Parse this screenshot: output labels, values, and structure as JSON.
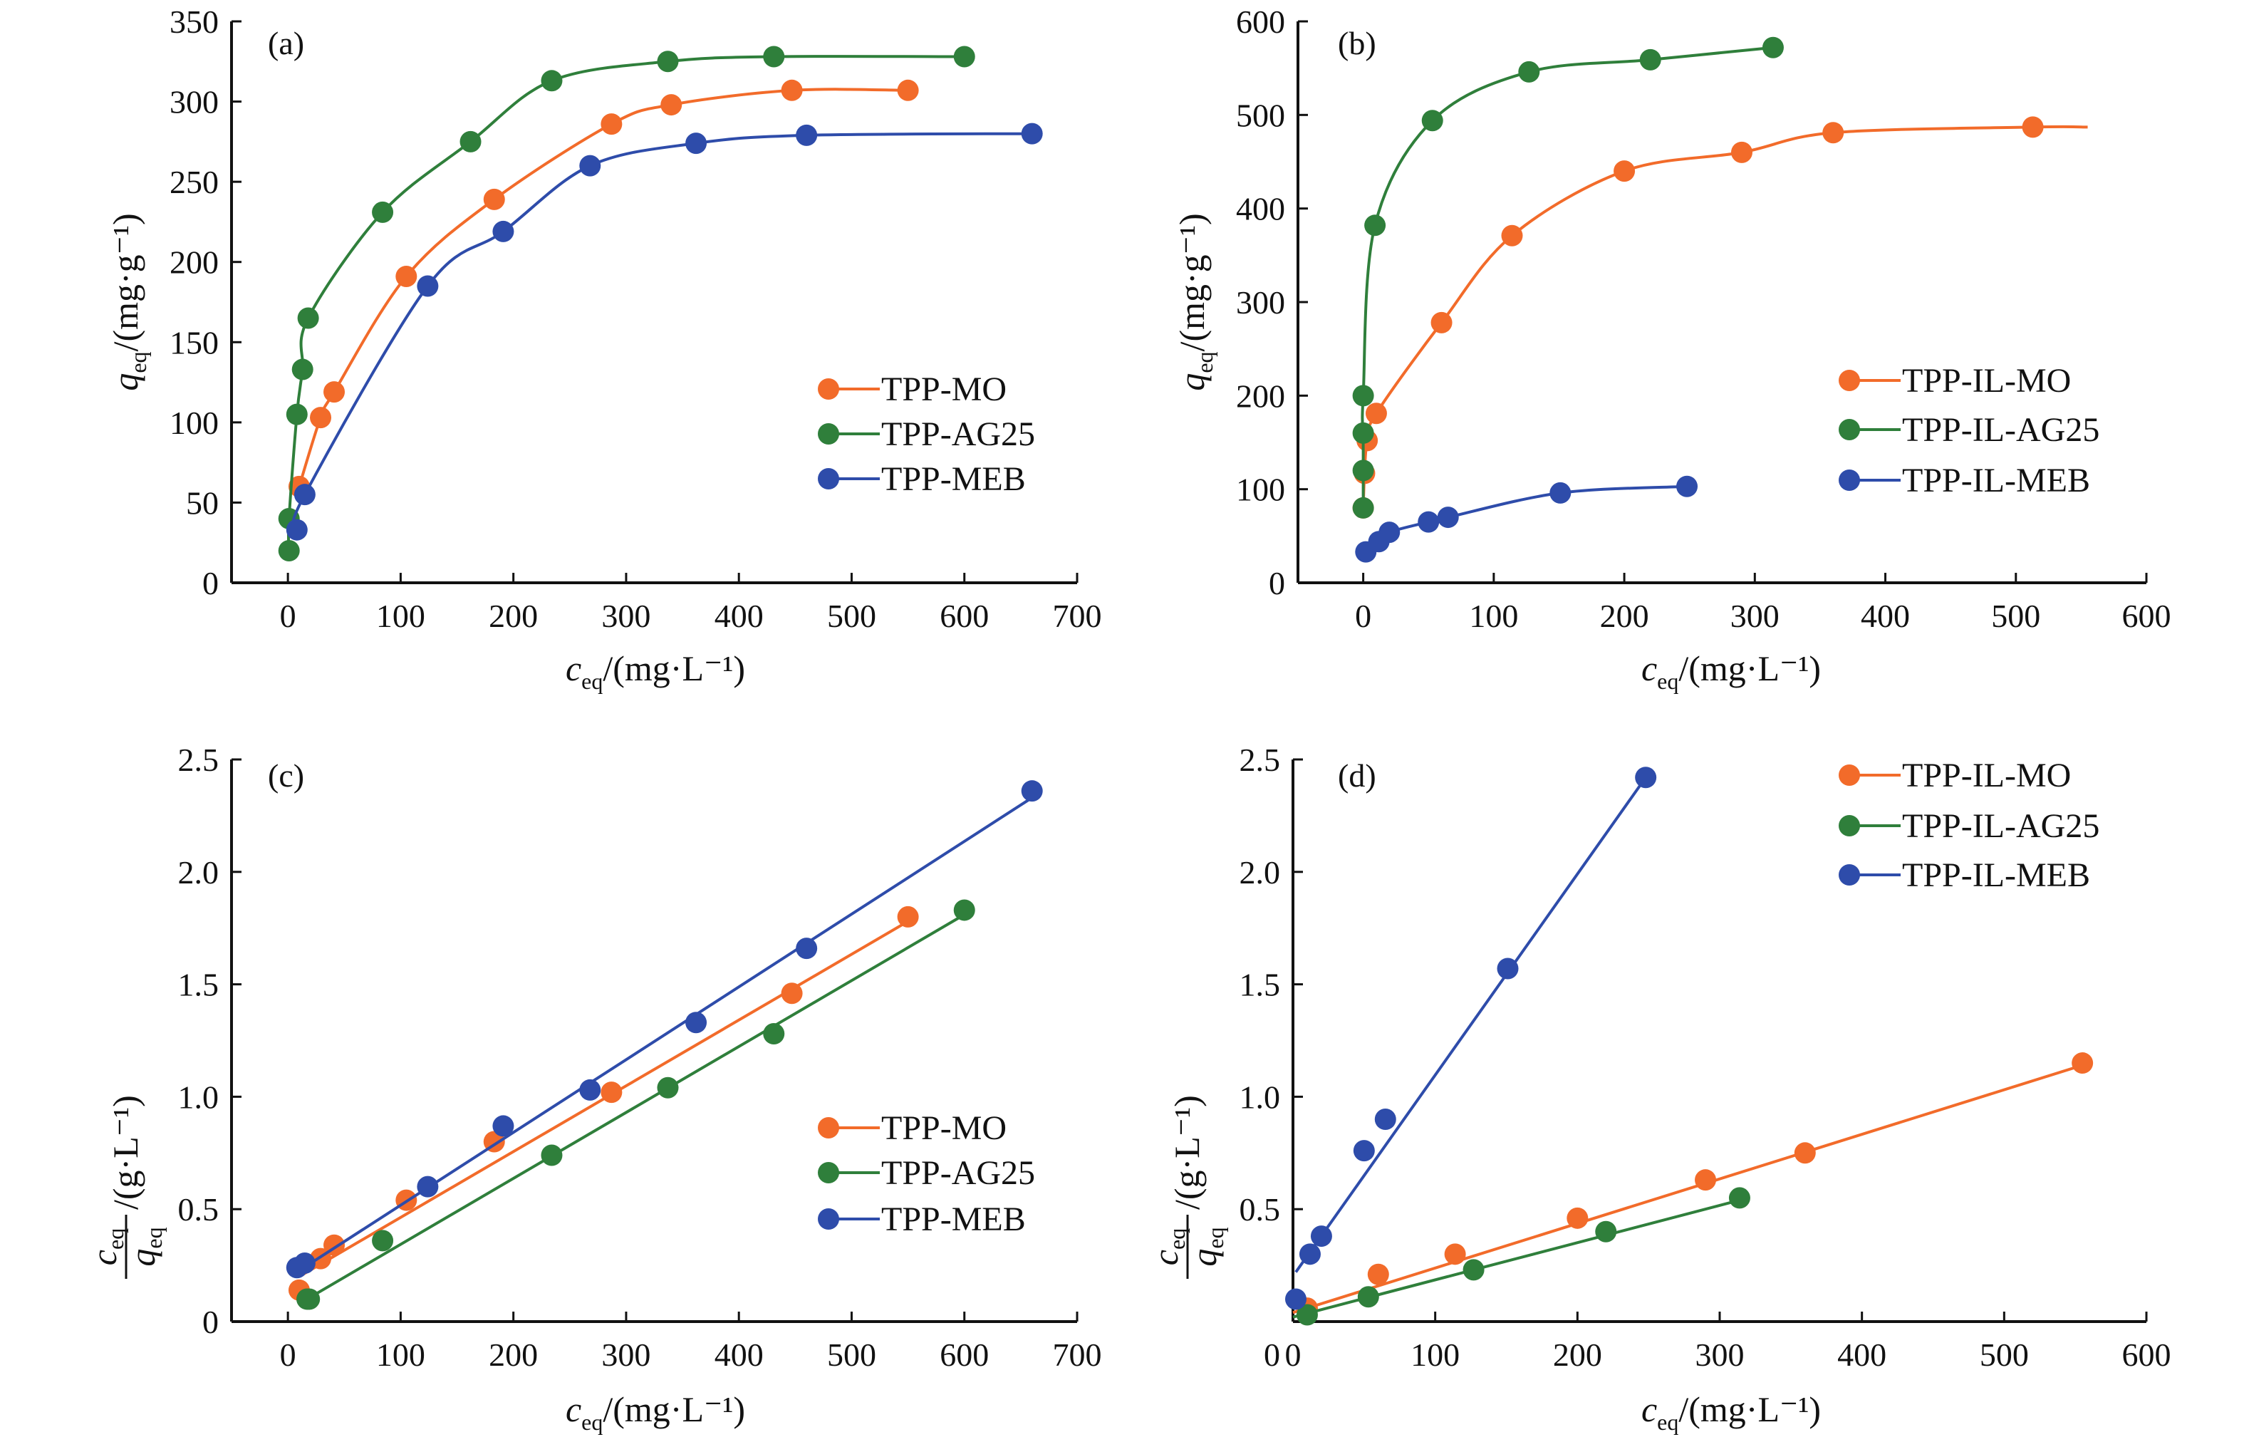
{
  "colors": {
    "MO": "#F26B2A",
    "AG25": "#2F7F3B",
    "MEB": "#2E4CAA"
  },
  "chart_data": [
    {
      "panel": "(a)",
      "type": "line",
      "xlabel": {
        "var": "c",
        "sub": "eq",
        "unit": "/(mg·L⁻¹)"
      },
      "ylabel": {
        "var": "q",
        "sub": "eq",
        "unit": "/(mg·g⁻¹)"
      },
      "xlim": [
        -50,
        700
      ],
      "ylim": [
        0,
        350
      ],
      "xticks": [
        0,
        100,
        200,
        300,
        400,
        500,
        600,
        700
      ],
      "yticks": [
        0,
        50,
        100,
        150,
        200,
        250,
        300,
        350
      ],
      "legend_position": "right",
      "series": [
        {
          "name": "TPP-MO",
          "color_key": "MO",
          "points": [
            [
              10,
              60
            ],
            [
              29,
              103
            ],
            [
              41,
              119
            ],
            [
              105,
              191
            ],
            [
              183,
              239
            ],
            [
              287,
              286
            ],
            [
              340,
              298
            ],
            [
              447,
              307
            ],
            [
              550,
              307
            ]
          ]
        },
        {
          "name": "TPP-AG25",
          "color_key": "AG25",
          "points": [
            [
              1,
              20
            ],
            [
              1,
              40
            ],
            [
              8,
              105
            ],
            [
              13,
              133
            ],
            [
              18,
              165
            ],
            [
              84,
              231
            ],
            [
              162,
              275
            ],
            [
              234,
              313
            ],
            [
              337,
              325
            ],
            [
              431,
              328
            ],
            [
              600,
              328
            ]
          ]
        },
        {
          "name": "TPP-MEB",
          "color_key": "MEB",
          "points": [
            [
              8,
              33
            ],
            [
              15,
              55
            ],
            [
              124,
              185
            ],
            [
              191,
              219
            ],
            [
              268,
              260
            ],
            [
              362,
              274
            ],
            [
              460,
              279
            ],
            [
              660,
              280
            ]
          ]
        }
      ]
    },
    {
      "panel": "(b)",
      "type": "line",
      "xlabel": {
        "var": "c",
        "sub": "eq",
        "unit": "/(mg·L⁻¹)"
      },
      "ylabel": {
        "var": "q",
        "sub": "eq",
        "unit": "/(mg·g⁻¹)"
      },
      "xlim": [
        -50,
        600
      ],
      "ylim": [
        0,
        600
      ],
      "xticks": [
        0,
        100,
        200,
        300,
        400,
        500,
        600
      ],
      "yticks": [
        0,
        100,
        200,
        300,
        400,
        500,
        600
      ],
      "legend_position": "right",
      "series": [
        {
          "name": "TPP-IL-MO",
          "color_key": "MO",
          "points": [
            [
              0,
              80
            ],
            [
              1,
              117
            ],
            [
              3,
              152
            ],
            [
              10,
              181
            ],
            [
              60,
              278
            ],
            [
              114,
              371
            ],
            [
              200,
              440
            ],
            [
              290,
              460
            ],
            [
              360,
              481
            ],
            [
              513,
              487
            ]
          ],
          "fit_end": [
            555,
            487
          ]
        },
        {
          "name": "TPP-IL-AG25",
          "color_key": "AG25",
          "points": [
            [
              0,
              80
            ],
            [
              0,
              120
            ],
            [
              0,
              160
            ],
            [
              0,
              200
            ],
            [
              9,
              382
            ],
            [
              53,
              494
            ],
            [
              127,
              546
            ],
            [
              220,
              559
            ],
            [
              314,
              572
            ]
          ]
        },
        {
          "name": "TPP-IL-MEB",
          "color_key": "MEB",
          "points": [
            [
              2,
              33
            ],
            [
              12,
              44
            ],
            [
              20,
              54
            ],
            [
              50,
              65
            ],
            [
              65,
              70
            ],
            [
              151,
              96
            ],
            [
              248,
              103
            ]
          ]
        }
      ]
    },
    {
      "panel": "(c)",
      "type": "scatter",
      "xlabel": {
        "var": "c",
        "sub": "eq",
        "unit": "/(mg·L⁻¹)"
      },
      "ylabel": {
        "num": "c",
        "den": "q",
        "sub": "eq",
        "unit": "/(g·L⁻¹)"
      },
      "xlim": [
        -50,
        700
      ],
      "ylim": [
        0,
        2.5
      ],
      "xticks": [
        0,
        100,
        200,
        300,
        400,
        500,
        600,
        700
      ],
      "yticks": [
        0,
        0.5,
        1.0,
        1.5,
        2.0,
        2.5
      ],
      "ytick_labels": [
        "0",
        "0.5",
        "1.0",
        "1.5",
        "2.0",
        "2.5"
      ],
      "legend_position": "right",
      "series": [
        {
          "name": "TPP-MO",
          "color_key": "MO",
          "points": [
            [
              10,
              0.14
            ],
            [
              29,
              0.28
            ],
            [
              41,
              0.34
            ],
            [
              105,
              0.54
            ],
            [
              183,
              0.8
            ],
            [
              287,
              1.02
            ],
            [
              447,
              1.46
            ],
            [
              550,
              1.8
            ]
          ],
          "fit": [
            [
              10,
              0.2
            ],
            [
              550,
              1.78
            ]
          ]
        },
        {
          "name": "TPP-AG25",
          "color_key": "AG25",
          "points": [
            [
              17,
              0.1
            ],
            [
              19,
              0.1
            ],
            [
              84,
              0.36
            ],
            [
              234,
              0.74
            ],
            [
              337,
              1.04
            ],
            [
              431,
              1.28
            ],
            [
              600,
              1.83
            ]
          ],
          "fit": [
            [
              17,
              0.1
            ],
            [
              600,
              1.81
            ]
          ]
        },
        {
          "name": "TPP-MEB",
          "color_key": "MEB",
          "points": [
            [
              8,
              0.24
            ],
            [
              15,
              0.26
            ],
            [
              124,
              0.6
            ],
            [
              191,
              0.87
            ],
            [
              268,
              1.03
            ],
            [
              362,
              1.33
            ],
            [
              460,
              1.66
            ],
            [
              660,
              2.36
            ]
          ],
          "fit": [
            [
              8,
              0.22
            ],
            [
              660,
              2.33
            ]
          ]
        }
      ]
    },
    {
      "panel": "(d)",
      "type": "scatter",
      "xlabel": {
        "var": "c",
        "sub": "eq",
        "unit": "/(mg·L⁻¹)"
      },
      "ylabel": {
        "num": "c",
        "den": "q",
        "sub": "eq",
        "unit": "/(g·L⁻¹)"
      },
      "xlim": [
        0,
        600
      ],
      "ylim": [
        0,
        2.5
      ],
      "xticks": [
        0,
        100,
        200,
        300,
        400,
        500,
        600
      ],
      "yticks": [
        0.5,
        1.0,
        1.5,
        2.0,
        2.5
      ],
      "ytick_labels": [
        "0.5",
        "1.0",
        "1.5",
        "2.0",
        "2.5"
      ],
      "legend_position": "top-right",
      "series": [
        {
          "name": "TPP-IL-MO",
          "color_key": "MO",
          "points": [
            [
              10,
              0.06
            ],
            [
              60,
              0.21
            ],
            [
              114,
              0.3
            ],
            [
              200,
              0.46
            ],
            [
              290,
              0.63
            ],
            [
              360,
              0.75
            ],
            [
              555,
              1.15
            ]
          ],
          "fit": [
            [
              0,
              0.04
            ],
            [
              555,
              1.14
            ]
          ]
        },
        {
          "name": "TPP-IL-AG25",
          "color_key": "AG25",
          "points": [
            [
              10,
              0.03
            ],
            [
              53,
              0.11
            ],
            [
              127,
              0.23
            ],
            [
              220,
              0.4
            ],
            [
              314,
              0.55
            ]
          ],
          "fit": [
            [
              0,
              0.02
            ],
            [
              314,
              0.54
            ]
          ]
        },
        {
          "name": "TPP-IL-MEB",
          "color_key": "MEB",
          "points": [
            [
              2,
              0.1
            ],
            [
              12,
              0.3
            ],
            [
              20,
              0.38
            ],
            [
              50,
              0.76
            ],
            [
              65,
              0.9
            ],
            [
              151,
              1.57
            ],
            [
              248,
              2.42
            ]
          ],
          "fit": [
            [
              2,
              0.22
            ],
            [
              248,
              2.42
            ]
          ]
        }
      ]
    }
  ]
}
